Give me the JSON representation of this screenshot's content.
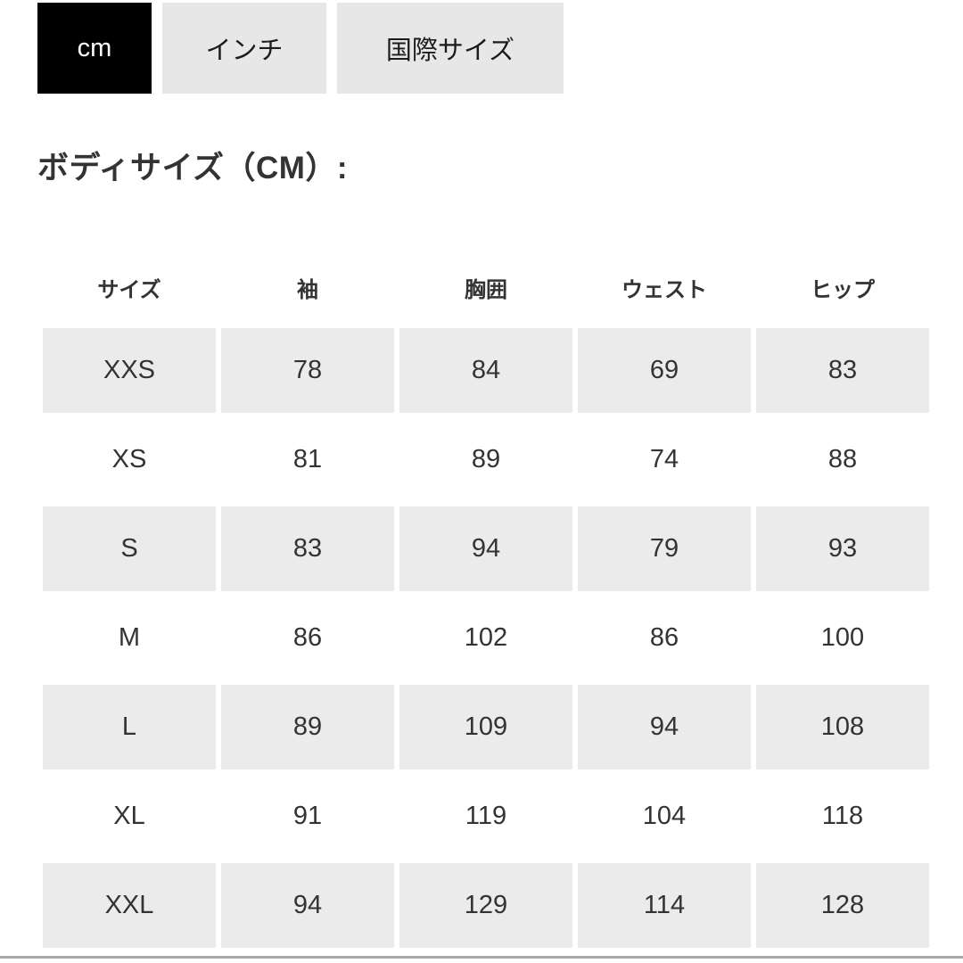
{
  "tabs": {
    "cm": {
      "label": "cm",
      "active": true
    },
    "inch": {
      "label": "インチ",
      "active": false
    },
    "international": {
      "label": "国際サイズ",
      "active": false
    }
  },
  "heading": "ボディサイズ（CM）:",
  "table": {
    "headers": [
      "サイズ",
      "袖",
      "胸囲",
      "ウェスト",
      "ヒップ"
    ],
    "rows": [
      [
        "XXS",
        "78",
        "84",
        "69",
        "83"
      ],
      [
        "XS",
        "81",
        "89",
        "74",
        "88"
      ],
      [
        "S",
        "83",
        "94",
        "79",
        "93"
      ],
      [
        "M",
        "86",
        "102",
        "86",
        "100"
      ],
      [
        "L",
        "89",
        "109",
        "94",
        "108"
      ],
      [
        "XL",
        "91",
        "119",
        "104",
        "118"
      ],
      [
        "XXL",
        "94",
        "129",
        "114",
        "128"
      ]
    ]
  },
  "colors": {
    "active_tab_bg": "#000000",
    "active_tab_text": "#ffffff",
    "inactive_tab_bg": "#e7e7e7",
    "shaded_row_bg": "#ebebeb",
    "text": "#333333",
    "divider": "#a8a8a8"
  }
}
